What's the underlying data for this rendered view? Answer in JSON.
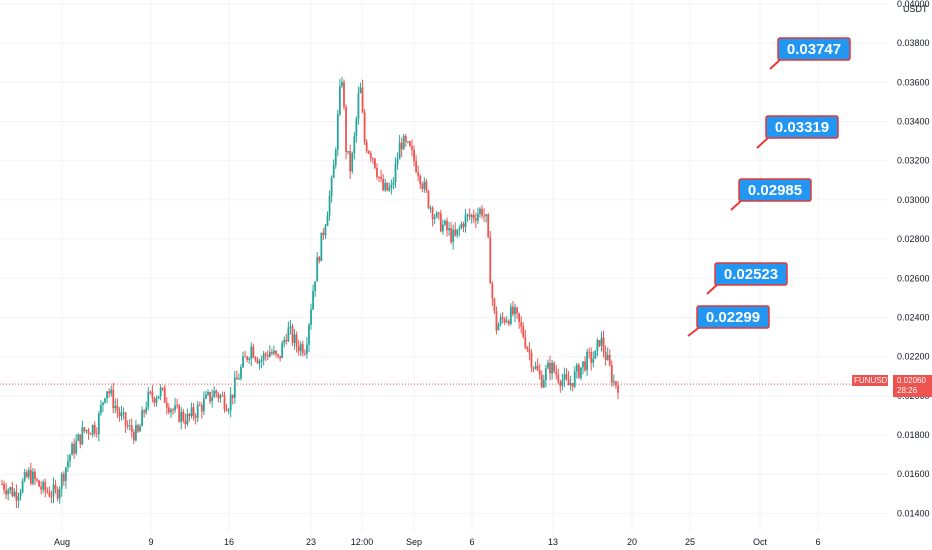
{
  "chart_data": {
    "type": "candlestick",
    "symbol": "FUNUSDT",
    "currency": "USDT",
    "last_price": "0.02060",
    "countdown": "28:26",
    "ylim": [
      0.013,
      0.0402
    ],
    "y_ticks": [
      "0.04000",
      "0.03800",
      "0.03600",
      "0.03400",
      "0.03200",
      "0.03000",
      "0.02800",
      "0.02600",
      "0.02400",
      "0.02200",
      "0.02000",
      "0.01800",
      "0.01600",
      "0.01400"
    ],
    "x_ticks": [
      "Aug",
      "9",
      "16",
      "23",
      "12:00",
      "Sep",
      "6",
      "13",
      "20",
      "25",
      "Oct",
      "6"
    ],
    "grid": true,
    "colors": {
      "up": "#26a69a",
      "down": "#ef5350",
      "grid": "#f0f3fa",
      "price_line": "#ef5350",
      "callout_bg": "#2196f3",
      "callout_border": "#e53935"
    },
    "targets": [
      {
        "label": "0.02299",
        "value": 0.02299
      },
      {
        "label": "0.02523",
        "value": 0.02523
      },
      {
        "label": "0.02985",
        "value": 0.02985
      },
      {
        "label": "0.03319",
        "value": 0.03319
      },
      {
        "label": "0.03747",
        "value": 0.03747
      }
    ],
    "price_path": [
      [
        0,
        0.0155
      ],
      [
        3,
        0.015
      ],
      [
        6,
        0.016
      ],
      [
        9,
        0.0152
      ],
      [
        12,
        0.015
      ],
      [
        15,
        0.017
      ],
      [
        18,
        0.0182
      ],
      [
        21,
        0.0185
      ],
      [
        23,
        0.0205
      ],
      [
        26,
        0.019
      ],
      [
        28,
        0.0183
      ],
      [
        30,
        0.018
      ],
      [
        32,
        0.0198
      ],
      [
        35,
        0.0202
      ],
      [
        38,
        0.0192
      ],
      [
        41,
        0.0188
      ],
      [
        44,
        0.0195
      ],
      [
        47,
        0.0202
      ],
      [
        50,
        0.0196
      ],
      [
        53,
        0.0215
      ],
      [
        55,
        0.0225
      ],
      [
        57,
        0.0218
      ],
      [
        59,
        0.0223
      ],
      [
        61,
        0.0218
      ],
      [
        63,
        0.0234
      ],
      [
        65,
        0.0226
      ],
      [
        67,
        0.0225
      ],
      [
        69,
        0.026
      ],
      [
        71,
        0.0285
      ],
      [
        73,
        0.031
      ],
      [
        75,
        0.0365
      ],
      [
        76,
        0.0325
      ],
      [
        77,
        0.0315
      ],
      [
        78,
        0.0335
      ],
      [
        79,
        0.036
      ],
      [
        80,
        0.033
      ],
      [
        82,
        0.0322
      ],
      [
        84,
        0.0305
      ],
      [
        86,
        0.0305
      ],
      [
        88,
        0.033
      ],
      [
        90,
        0.0325
      ],
      [
        92,
        0.0315
      ],
      [
        94,
        0.03
      ],
      [
        96,
        0.029
      ],
      [
        98,
        0.0285
      ],
      [
        100,
        0.028
      ],
      [
        102,
        0.029
      ],
      [
        104,
        0.0292
      ],
      [
        106,
        0.0295
      ],
      [
        107,
        0.0288
      ],
      [
        108,
        0.0255
      ],
      [
        109,
        0.0235
      ],
      [
        111,
        0.024
      ],
      [
        113,
        0.0242
      ],
      [
        115,
        0.0232
      ],
      [
        117,
        0.0218
      ],
      [
        119,
        0.0208
      ],
      [
        121,
        0.0215
      ],
      [
        123,
        0.021
      ],
      [
        125,
        0.0205
      ],
      [
        127,
        0.0212
      ],
      [
        129,
        0.0218
      ],
      [
        131,
        0.022
      ],
      [
        132,
        0.023
      ],
      [
        134,
        0.0215
      ],
      [
        135,
        0.0207
      ],
      [
        136,
        0.0206
      ]
    ]
  }
}
